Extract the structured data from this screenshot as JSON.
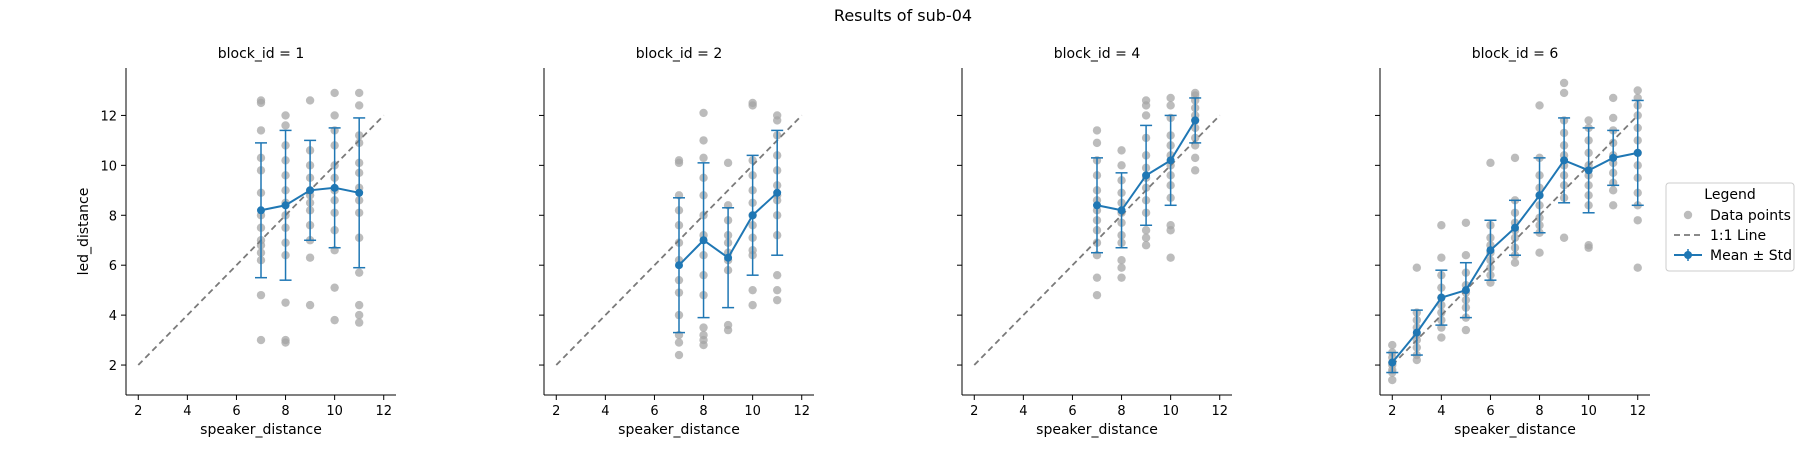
{
  "figure_title": "Results of sub-04",
  "colors": {
    "points": "#a6a6a6",
    "mean": "#1f77b4",
    "identity": "#7a7a7a",
    "axis": "#000000"
  },
  "legend": {
    "title": "Legend",
    "items": [
      {
        "label": "Data points",
        "kind": "points"
      },
      {
        "label": "1:1 Line",
        "kind": "identity"
      },
      {
        "label": "Mean ± Std",
        "kind": "mean"
      }
    ]
  },
  "chart_data": [
    {
      "type": "scatter",
      "title": "block_id = 1",
      "xlabel": "speaker_distance",
      "ylabel": "led_distance",
      "xlim": [
        1.5,
        12.5
      ],
      "ylim": [
        0.8,
        13.9
      ],
      "xticks": [
        2,
        4,
        6,
        8,
        10,
        12
      ],
      "yticks": [
        2,
        4,
        6,
        8,
        10,
        12
      ],
      "identity_line": [
        2,
        12
      ],
      "mean": {
        "x": [
          7,
          8,
          9,
          10,
          11
        ],
        "y": [
          8.2,
          8.4,
          9.0,
          9.1,
          8.9
        ],
        "std": [
          2.7,
          3.0,
          2.0,
          2.4,
          3.0
        ]
      },
      "points": [
        [
          7,
          12.6
        ],
        [
          7,
          12.5
        ],
        [
          7,
          11.4
        ],
        [
          7,
          10.3
        ],
        [
          7,
          9.8
        ],
        [
          7,
          8.9
        ],
        [
          7,
          8.0
        ],
        [
          7,
          7.5
        ],
        [
          7,
          7.0
        ],
        [
          7,
          6.8
        ],
        [
          7,
          6.5
        ],
        [
          7,
          6.2
        ],
        [
          7,
          4.8
        ],
        [
          7,
          3.0
        ],
        [
          8,
          12.0
        ],
        [
          8,
          11.6
        ],
        [
          8,
          10.8
        ],
        [
          8,
          10.2
        ],
        [
          8,
          9.6
        ],
        [
          8,
          9.0
        ],
        [
          8,
          8.5
        ],
        [
          8,
          8.0
        ],
        [
          8,
          7.5
        ],
        [
          8,
          6.9
        ],
        [
          8,
          6.4
        ],
        [
          8,
          4.5
        ],
        [
          8,
          3.0
        ],
        [
          8,
          2.9
        ],
        [
          9,
          12.6
        ],
        [
          9,
          10.6
        ],
        [
          9,
          10.0
        ],
        [
          9,
          9.5
        ],
        [
          9,
          9.0
        ],
        [
          9,
          8.8
        ],
        [
          9,
          8.5
        ],
        [
          9,
          8.2
        ],
        [
          9,
          7.6
        ],
        [
          9,
          7.0
        ],
        [
          9,
          6.3
        ],
        [
          9,
          4.4
        ],
        [
          10,
          12.9
        ],
        [
          10,
          12.0
        ],
        [
          10,
          11.4
        ],
        [
          10,
          10.8
        ],
        [
          10,
          10.0
        ],
        [
          10,
          9.5
        ],
        [
          10,
          9.0
        ],
        [
          10,
          8.6
        ],
        [
          10,
          8.1
        ],
        [
          10,
          7.4
        ],
        [
          10,
          6.6
        ],
        [
          10,
          5.1
        ],
        [
          10,
          3.8
        ],
        [
          11,
          12.9
        ],
        [
          11,
          12.4
        ],
        [
          11,
          11.2
        ],
        [
          11,
          10.9
        ],
        [
          11,
          10.1
        ],
        [
          11,
          9.7
        ],
        [
          11,
          9.1
        ],
        [
          11,
          8.6
        ],
        [
          11,
          8.1
        ],
        [
          11,
          7.1
        ],
        [
          11,
          5.7
        ],
        [
          11,
          4.4
        ],
        [
          11,
          4.0
        ],
        [
          11,
          3.7
        ]
      ]
    },
    {
      "type": "scatter",
      "title": "block_id = 2",
      "xlabel": "speaker_distance",
      "ylabel": "",
      "xlim": [
        1.5,
        12.5
      ],
      "ylim": [
        0.8,
        13.9
      ],
      "xticks": [
        2,
        4,
        6,
        8,
        10,
        12
      ],
      "yticks": [
        2,
        4,
        6,
        8,
        10,
        12
      ],
      "identity_line": [
        2,
        12
      ],
      "mean": {
        "x": [
          7,
          8,
          9,
          10,
          11
        ],
        "y": [
          6.0,
          7.0,
          6.3,
          8.0,
          8.9
        ],
        "std": [
          2.7,
          3.1,
          2.0,
          2.4,
          2.5
        ]
      },
      "points": [
        [
          7,
          10.2
        ],
        [
          7,
          10.1
        ],
        [
          7,
          8.8
        ],
        [
          7,
          8.2
        ],
        [
          7,
          7.6
        ],
        [
          7,
          6.9
        ],
        [
          7,
          6.2
        ],
        [
          7,
          5.4
        ],
        [
          7,
          4.9
        ],
        [
          7,
          4.0
        ],
        [
          7,
          3.2
        ],
        [
          7,
          2.9
        ],
        [
          7,
          2.4
        ],
        [
          8,
          12.1
        ],
        [
          8,
          11.0
        ],
        [
          8,
          10.3
        ],
        [
          8,
          9.5
        ],
        [
          8,
          8.8
        ],
        [
          8,
          8.0
        ],
        [
          8,
          7.2
        ],
        [
          8,
          6.4
        ],
        [
          8,
          5.6
        ],
        [
          8,
          4.8
        ],
        [
          8,
          3.5
        ],
        [
          8,
          3.2
        ],
        [
          8,
          3.0
        ],
        [
          8,
          2.8
        ],
        [
          9,
          10.1
        ],
        [
          9,
          8.4
        ],
        [
          9,
          7.8
        ],
        [
          9,
          7.2
        ],
        [
          9,
          6.9
        ],
        [
          9,
          6.5
        ],
        [
          9,
          6.2
        ],
        [
          9,
          5.8
        ],
        [
          9,
          3.6
        ],
        [
          9,
          3.4
        ],
        [
          10,
          12.5
        ],
        [
          10,
          12.4
        ],
        [
          10,
          10.2
        ],
        [
          10,
          9.6
        ],
        [
          10,
          9.0
        ],
        [
          10,
          8.5
        ],
        [
          10,
          8.0
        ],
        [
          10,
          7.6
        ],
        [
          10,
          7.1
        ],
        [
          10,
          6.6
        ],
        [
          10,
          6.4
        ],
        [
          10,
          5.0
        ],
        [
          10,
          4.4
        ],
        [
          11,
          12.0
        ],
        [
          11,
          11.8
        ],
        [
          11,
          11.2
        ],
        [
          11,
          10.4
        ],
        [
          11,
          9.8
        ],
        [
          11,
          9.2
        ],
        [
          11,
          8.8
        ],
        [
          11,
          8.6
        ],
        [
          11,
          8.0
        ],
        [
          11,
          7.2
        ],
        [
          11,
          5.6
        ],
        [
          11,
          5.0
        ],
        [
          11,
          4.6
        ]
      ]
    },
    {
      "type": "scatter",
      "title": "block_id = 4",
      "xlabel": "speaker_distance",
      "ylabel": "",
      "xlim": [
        1.5,
        12.5
      ],
      "ylim": [
        0.8,
        13.9
      ],
      "xticks": [
        2,
        4,
        6,
        8,
        10,
        12
      ],
      "yticks": [
        2,
        4,
        6,
        8,
        10,
        12
      ],
      "identity_line": [
        2,
        12
      ],
      "mean": {
        "x": [
          7,
          8,
          9,
          10,
          11
        ],
        "y": [
          8.4,
          8.2,
          9.6,
          10.2,
          11.8
        ],
        "std": [
          1.9,
          1.5,
          2.0,
          1.8,
          0.9
        ]
      },
      "points": [
        [
          7,
          11.4
        ],
        [
          7,
          10.9
        ],
        [
          7,
          10.2
        ],
        [
          7,
          9.6
        ],
        [
          7,
          9.0
        ],
        [
          7,
          8.6
        ],
        [
          7,
          8.2
        ],
        [
          7,
          7.8
        ],
        [
          7,
          7.4
        ],
        [
          7,
          6.9
        ],
        [
          7,
          6.4
        ],
        [
          7,
          5.5
        ],
        [
          7,
          4.8
        ],
        [
          8,
          10.6
        ],
        [
          8,
          10.0
        ],
        [
          8,
          9.4
        ],
        [
          8,
          8.9
        ],
        [
          8,
          8.5
        ],
        [
          8,
          8.1
        ],
        [
          8,
          7.7
        ],
        [
          8,
          7.2
        ],
        [
          8,
          6.9
        ],
        [
          8,
          6.2
        ],
        [
          8,
          5.9
        ],
        [
          8,
          5.5
        ],
        [
          9,
          12.6
        ],
        [
          9,
          12.4
        ],
        [
          9,
          12.0
        ],
        [
          9,
          11.1
        ],
        [
          9,
          10.4
        ],
        [
          9,
          9.9
        ],
        [
          9,
          9.5
        ],
        [
          9,
          9.1
        ],
        [
          9,
          8.6
        ],
        [
          9,
          8.1
        ],
        [
          9,
          7.4
        ],
        [
          9,
          7.1
        ],
        [
          9,
          6.8
        ],
        [
          10,
          12.7
        ],
        [
          10,
          12.4
        ],
        [
          10,
          11.9
        ],
        [
          10,
          11.2
        ],
        [
          10,
          10.8
        ],
        [
          10,
          10.4
        ],
        [
          10,
          10.0
        ],
        [
          10,
          9.6
        ],
        [
          10,
          9.2
        ],
        [
          10,
          8.7
        ],
        [
          10,
          7.6
        ],
        [
          10,
          7.4
        ],
        [
          10,
          6.3
        ],
        [
          11,
          12.9
        ],
        [
          11,
          12.8
        ],
        [
          11,
          12.6
        ],
        [
          11,
          12.3
        ],
        [
          11,
          12.0
        ],
        [
          11,
          11.8
        ],
        [
          11,
          11.5
        ],
        [
          11,
          11.1
        ],
        [
          11,
          10.8
        ],
        [
          11,
          10.3
        ],
        [
          11,
          9.8
        ]
      ]
    },
    {
      "type": "scatter",
      "title": "block_id = 6",
      "xlabel": "speaker_distance",
      "ylabel": "",
      "xlim": [
        1.5,
        12.5
      ],
      "ylim": [
        0.8,
        13.9
      ],
      "xticks": [
        2,
        4,
        6,
        8,
        10,
        12
      ],
      "yticks": [
        2,
        4,
        6,
        8,
        10,
        12
      ],
      "identity_line": [
        2,
        12
      ],
      "mean": {
        "x": [
          2,
          3,
          4,
          5,
          6,
          7,
          8,
          9,
          10,
          11,
          12
        ],
        "y": [
          2.1,
          3.3,
          4.7,
          5.0,
          6.6,
          7.5,
          8.8,
          10.2,
          9.8,
          10.3,
          10.5
        ],
        "std": [
          0.4,
          0.9,
          1.1,
          1.1,
          1.2,
          1.1,
          1.5,
          1.7,
          1.7,
          1.1,
          2.1
        ]
      },
      "points": [
        [
          2,
          2.8
        ],
        [
          2,
          2.5
        ],
        [
          2,
          2.3
        ],
        [
          2,
          2.1
        ],
        [
          2,
          2.0
        ],
        [
          2,
          1.8
        ],
        [
          2,
          1.7
        ],
        [
          2,
          1.4
        ],
        [
          3,
          5.9
        ],
        [
          3,
          4.1
        ],
        [
          3,
          3.8
        ],
        [
          3,
          3.5
        ],
        [
          3,
          3.2
        ],
        [
          3,
          3.0
        ],
        [
          3,
          2.7
        ],
        [
          3,
          2.4
        ],
        [
          3,
          2.2
        ],
        [
          4,
          7.6
        ],
        [
          4,
          6.3
        ],
        [
          4,
          5.6
        ],
        [
          4,
          5.1
        ],
        [
          4,
          4.7
        ],
        [
          4,
          4.4
        ],
        [
          4,
          4.1
        ],
        [
          4,
          3.8
        ],
        [
          4,
          3.5
        ],
        [
          4,
          3.1
        ],
        [
          5,
          7.7
        ],
        [
          5,
          6.4
        ],
        [
          5,
          5.7
        ],
        [
          5,
          5.2
        ],
        [
          5,
          4.9
        ],
        [
          5,
          4.6
        ],
        [
          5,
          4.3
        ],
        [
          5,
          3.9
        ],
        [
          5,
          3.4
        ],
        [
          6,
          10.1
        ],
        [
          6,
          7.6
        ],
        [
          6,
          7.1
        ],
        [
          6,
          6.8
        ],
        [
          6,
          6.5
        ],
        [
          6,
          6.2
        ],
        [
          6,
          5.9
        ],
        [
          6,
          5.6
        ],
        [
          6,
          5.3
        ],
        [
          7,
          10.3
        ],
        [
          7,
          8.6
        ],
        [
          7,
          8.1
        ],
        [
          7,
          7.7
        ],
        [
          7,
          7.4
        ],
        [
          7,
          7.1
        ],
        [
          7,
          6.7
        ],
        [
          7,
          6.4
        ],
        [
          7,
          6.1
        ],
        [
          8,
          12.4
        ],
        [
          8,
          10.3
        ],
        [
          8,
          9.6
        ],
        [
          8,
          9.1
        ],
        [
          8,
          8.8
        ],
        [
          8,
          8.4
        ],
        [
          8,
          7.9
        ],
        [
          8,
          7.6
        ],
        [
          8,
          7.3
        ],
        [
          8,
          6.5
        ],
        [
          9,
          13.3
        ],
        [
          9,
          12.9
        ],
        [
          9,
          11.8
        ],
        [
          9,
          11.3
        ],
        [
          9,
          10.8
        ],
        [
          9,
          10.4
        ],
        [
          9,
          10.0
        ],
        [
          9,
          9.6
        ],
        [
          9,
          9.2
        ],
        [
          9,
          8.7
        ],
        [
          9,
          7.1
        ],
        [
          10,
          11.8
        ],
        [
          10,
          11.5
        ],
        [
          10,
          11.0
        ],
        [
          10,
          10.5
        ],
        [
          10,
          10.0
        ],
        [
          10,
          9.6
        ],
        [
          10,
          9.2
        ],
        [
          10,
          8.8
        ],
        [
          10,
          8.4
        ],
        [
          10,
          6.8
        ],
        [
          10,
          6.7
        ],
        [
          11,
          12.7
        ],
        [
          11,
          11.9
        ],
        [
          11,
          11.4
        ],
        [
          11,
          10.9
        ],
        [
          11,
          10.4
        ],
        [
          11,
          10.1
        ],
        [
          11,
          9.7
        ],
        [
          11,
          9.3
        ],
        [
          11,
          9.0
        ],
        [
          11,
          8.4
        ],
        [
          12,
          13.0
        ],
        [
          12,
          12.7
        ],
        [
          12,
          12.4
        ],
        [
          12,
          12.0
        ],
        [
          12,
          11.5
        ],
        [
          12,
          11.0
        ],
        [
          12,
          10.5
        ],
        [
          12,
          10.0
        ],
        [
          12,
          9.5
        ],
        [
          12,
          8.9
        ],
        [
          12,
          8.4
        ],
        [
          12,
          7.8
        ],
        [
          12,
          5.9
        ]
      ]
    }
  ]
}
